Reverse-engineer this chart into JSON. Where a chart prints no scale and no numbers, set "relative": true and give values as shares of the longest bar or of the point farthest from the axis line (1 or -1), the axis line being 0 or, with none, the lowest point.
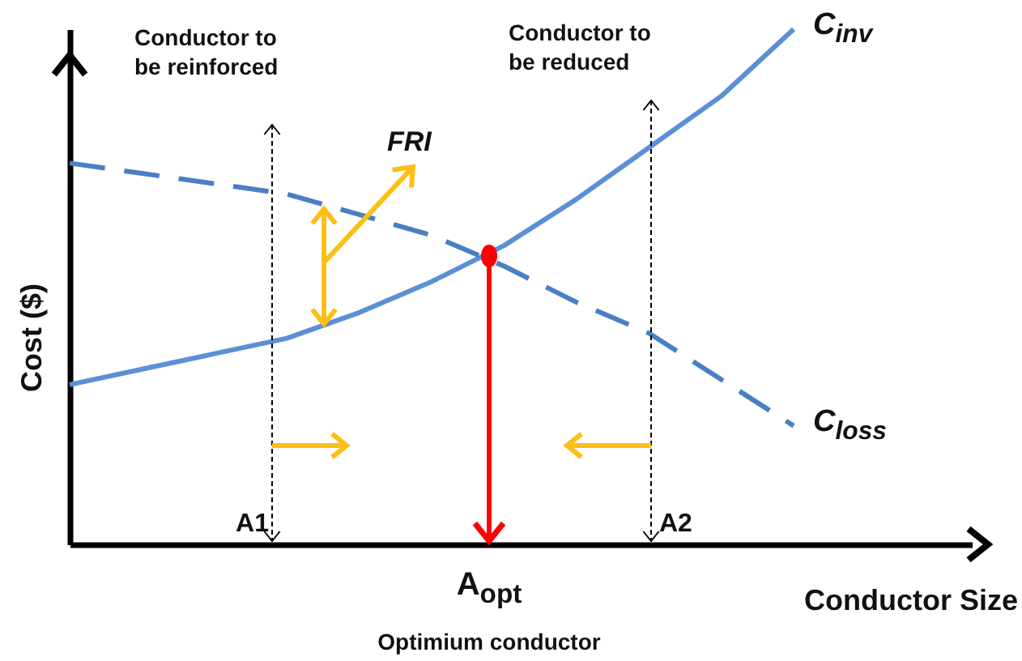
{
  "chart_data": {
    "type": "line",
    "relative": true,
    "xlabel": "Conductor Size",
    "ylabel": "Cost ($)",
    "marker": "none",
    "categories": [
      null,
      null,
      null,
      null,
      null,
      null,
      null,
      null,
      null,
      null,
      null
    ],
    "series": [
      {
        "name": "C$_{inv}$",
        "color": "#5b8fd6",
        "line_style": "solid",
        "values": [
          0.31,
          0.34,
          0.37,
          0.4,
          0.45,
          0.51,
          0.58,
          0.67,
          0.77,
          0.87,
          1.0
        ]
      },
      {
        "name": "C$_{loss}$",
        "color": "#4a7fc4",
        "line_style": "dashed",
        "values": [
          0.74,
          0.72,
          0.7,
          0.68,
          0.64,
          0.6,
          0.54,
          0.47,
          0.41,
          0.32,
          0.23
        ]
      }
    ],
    "annotations": [
      "Conductor to be reinforced",
      "Conductor to be reduced",
      "FRI",
      "A1",
      "A2",
      "A$_{opt}$",
      "Optimium conductor"
    ]
  }
}
